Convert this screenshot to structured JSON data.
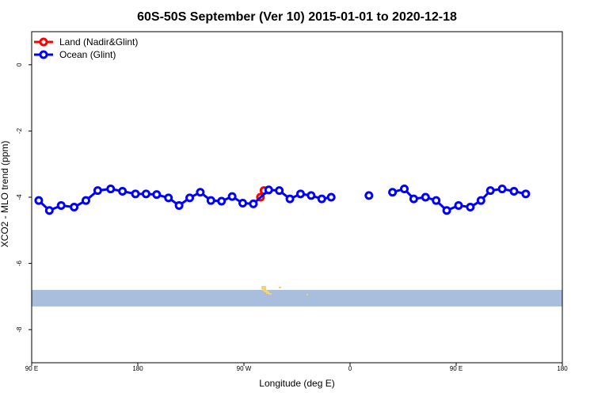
{
  "chart_data": {
    "type": "line",
    "title": "60S-50S September (Ver 10)   2015-01-01 to 2020-12-18",
    "xlabel": "Longitude (deg E)",
    "ylabel": "XCO2 - MLO trend (ppm)",
    "xlim": [
      90,
      540
    ],
    "ylim": [
      -9,
      1
    ],
    "x_ticks": [
      {
        "value": 90,
        "label": "90 E"
      },
      {
        "value": 180,
        "label": "180"
      },
      {
        "value": 270,
        "label": "90 W"
      },
      {
        "value": 360,
        "label": "0"
      },
      {
        "value": 450,
        "label": "90 E"
      },
      {
        "value": 540,
        "label": "180"
      }
    ],
    "y_ticks": [
      {
        "value": 0,
        "label": "0"
      },
      {
        "value": -2,
        "label": "-2"
      },
      {
        "value": -4,
        "label": "-4"
      },
      {
        "value": -6,
        "label": "-6"
      },
      {
        "value": -8,
        "label": "-8"
      }
    ],
    "legend_position": "top-left",
    "map_band": {
      "y_top": -6.8,
      "y_bottom": -7.3,
      "color": "#a8bedc",
      "land_color": "#f2d27a"
    },
    "series": [
      {
        "name": "Land (Nadir&Glint)",
        "color": "#ff0000",
        "segments": [
          [
            [
              284,
              -4.0
            ],
            [
              287,
              -3.8
            ]
          ]
        ]
      },
      {
        "name": "Ocean (Glint)",
        "color": "#0000ff",
        "segments": [
          [
            [
              96,
              -4.1
            ],
            [
              105,
              -4.4
            ],
            [
              115,
              -4.25
            ],
            [
              126,
              -4.3
            ],
            [
              136,
              -4.1
            ],
            [
              146,
              -3.8
            ],
            [
              157,
              -3.75
            ],
            [
              167,
              -3.82
            ],
            [
              178,
              -3.9
            ],
            [
              187,
              -3.9
            ],
            [
              196,
              -3.92
            ],
            [
              206,
              -4.02
            ],
            [
              215,
              -4.25
            ],
            [
              224,
              -4.02
            ],
            [
              233,
              -3.85
            ],
            [
              242,
              -4.1
            ],
            [
              251,
              -4.12
            ],
            [
              260,
              -3.98
            ],
            [
              269,
              -4.18
            ],
            [
              278,
              -4.2
            ],
            [
              291,
              -3.78
            ],
            [
              300,
              -3.8
            ],
            [
              309,
              -4.05
            ],
            [
              318,
              -3.9
            ],
            [
              327,
              -3.95
            ],
            [
              336,
              -4.05
            ],
            [
              344,
              -4.0
            ]
          ],
          [
            [
              376,
              -3.95
            ]
          ],
          [
            [
              396,
              -3.85
            ],
            [
              406,
              -3.75
            ],
            [
              414,
              -4.05
            ],
            [
              424,
              -4.0
            ],
            [
              433,
              -4.1
            ],
            [
              442,
              -4.4
            ],
            [
              452,
              -4.25
            ],
            [
              462,
              -4.3
            ],
            [
              471,
              -4.1
            ],
            [
              479,
              -3.8
            ],
            [
              489,
              -3.75
            ],
            [
              499,
              -3.82
            ],
            [
              509,
              -3.9
            ]
          ]
        ]
      }
    ]
  }
}
